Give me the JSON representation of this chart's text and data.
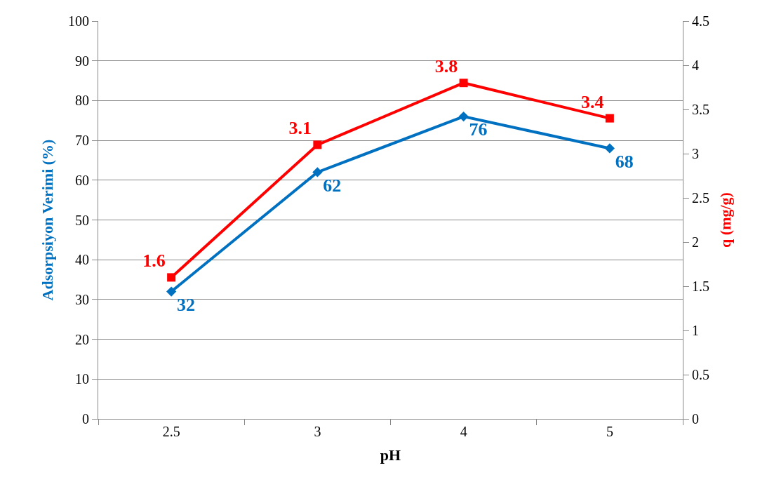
{
  "chart_data": {
    "type": "line",
    "xlabel": "pH",
    "ylabel": "Adsorpsiyon Verimi (%)",
    "y2label": "q (mg/g)",
    "categories": [
      "2.5",
      "3",
      "4",
      "5"
    ],
    "series": [
      {
        "color": "#0070c0",
        "values": [
          32,
          62,
          76,
          68
        ],
        "marker": "diamond"
      },
      {
        "color": "#ff0000",
        "values": [
          1.6,
          3.1,
          3.8,
          3.4
        ],
        "marker": "square",
        "axis": "y2"
      }
    ],
    "ylim": [
      0,
      100
    ],
    "yticks": [
      0,
      10,
      20,
      30,
      40,
      50,
      60,
      70,
      80,
      90,
      100
    ],
    "y2lim": [
      0,
      4.5
    ],
    "y2ticks": [
      0,
      0.5,
      1,
      1.5,
      2,
      2.5,
      3,
      3.5,
      4,
      4.5
    ],
    "grid": "y",
    "data_labels": true
  }
}
